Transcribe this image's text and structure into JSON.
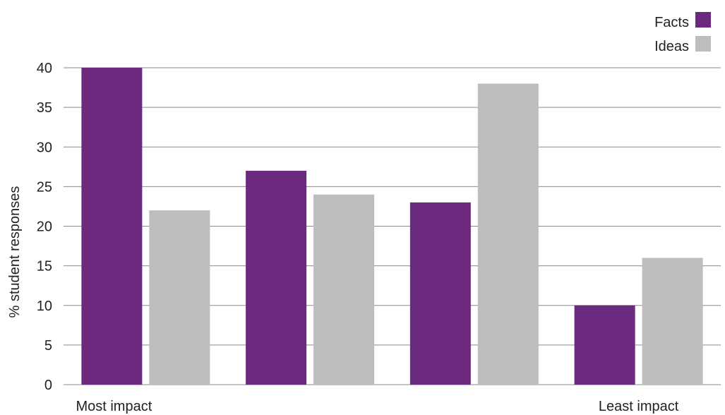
{
  "chart_data": {
    "type": "bar",
    "categories": [
      "Most impact",
      "",
      "",
      "Least impact"
    ],
    "series": [
      {
        "name": "Facts",
        "values": [
          40,
          27,
          23,
          10
        ],
        "color": "#6b2a7d"
      },
      {
        "name": "Ideas",
        "values": [
          22,
          24,
          38,
          16
        ],
        "color": "#bdbdbf"
      }
    ],
    "title": "",
    "xlabel": "",
    "ylabel": "% student responses",
    "ylim": [
      0,
      40
    ],
    "yticks": [
      0,
      5,
      10,
      15,
      20,
      25,
      30,
      35,
      40
    ],
    "grid": true,
    "legend_position": "top-right"
  }
}
